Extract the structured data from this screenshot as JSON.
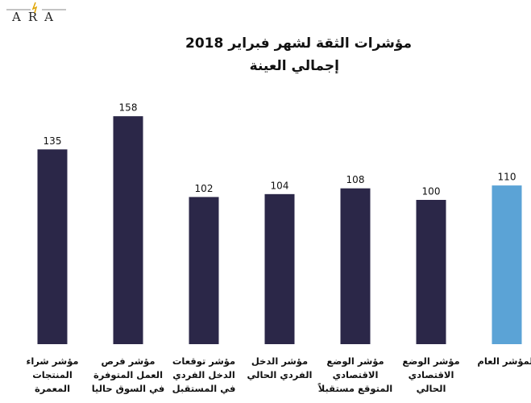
{
  "logo": "ARA",
  "chart_data": {
    "type": "bar",
    "title": "مؤشرات الثقة لشهر فبراير 2018",
    "subtitle": "إجمالي العينة",
    "categories": [
      "المؤشر العام",
      "مؤشر الوضع الاقتصادي الحالي",
      "مؤشر الوضع الاقتصادي المتوقع مستقبلاً",
      "مؤشر الدخل الفردي الحالي",
      "مؤشر توقعات الدخل الفردي في المستقبل",
      "مؤشر فرص العمل المتوفرة في السوق حاليا",
      "مؤشر شراء المنتجات المعمرة"
    ],
    "values": [
      110,
      100,
      108,
      104,
      102,
      158,
      135
    ],
    "colors": [
      "#5ba3d6",
      "#2b2748",
      "#2b2748",
      "#2b2748",
      "#2b2748",
      "#2b2748",
      "#2b2748"
    ]
  }
}
